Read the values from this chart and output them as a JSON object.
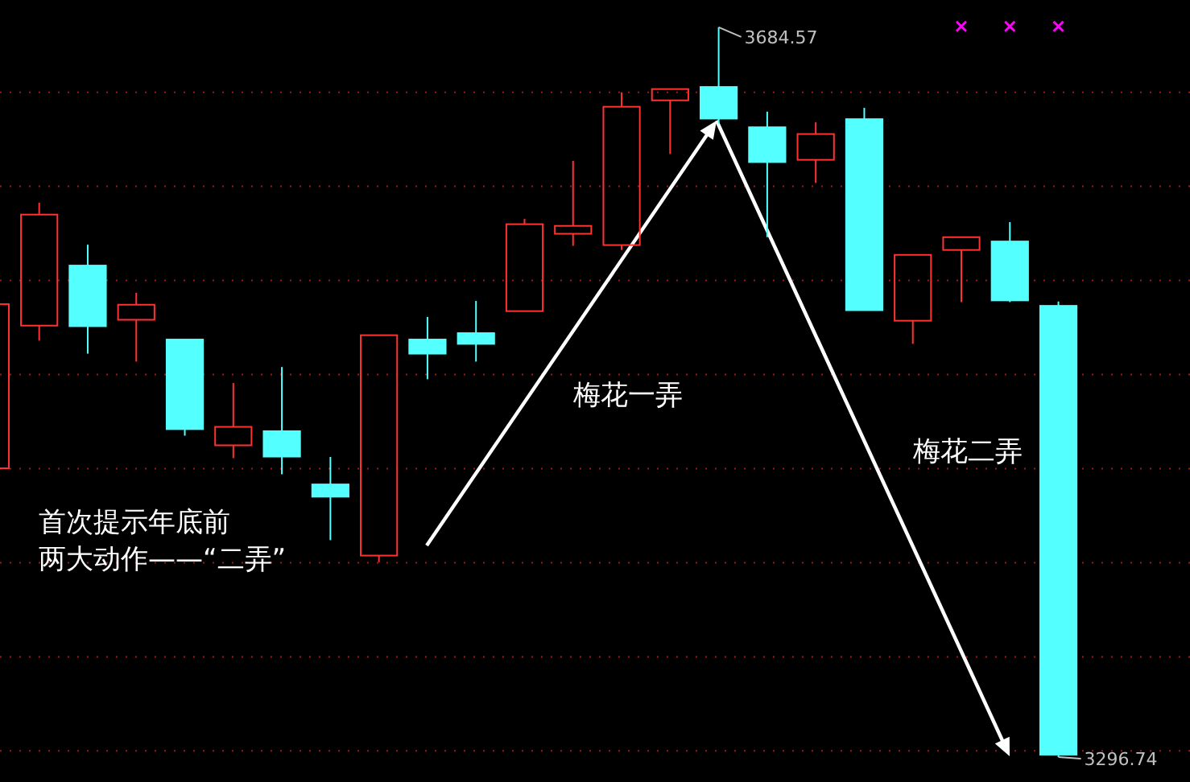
{
  "chart_data": {
    "type": "candlestick",
    "categories": [
      null,
      null,
      null,
      null,
      null,
      null,
      null,
      null,
      null,
      null,
      null,
      null,
      null,
      null,
      null,
      null,
      null,
      null,
      null,
      null,
      null,
      null,
      null
    ],
    "ohlc": [
      [
        3450.2,
        3537.4,
        3450.2,
        3537.4
      ],
      [
        3526.0,
        3591.3,
        3518.0,
        3585.0
      ],
      [
        3557.9,
        3569.0,
        3511.1,
        3525.7
      ],
      [
        3529.1,
        3543.4,
        3506.9,
        3537.1
      ],
      [
        3518.6,
        3518.6,
        3467.5,
        3471.0
      ],
      [
        3462.4,
        3495.5,
        3455.6,
        3472.2
      ],
      [
        3469.9,
        3504.0,
        3447.0,
        3456.4
      ],
      [
        3441.6,
        3456.2,
        3412.0,
        3435.1
      ],
      [
        3403.8,
        3520.9,
        3400.3,
        3520.9
      ],
      [
        3518.6,
        3530.6,
        3497.5,
        3511.1
      ],
      [
        3522.0,
        3539.1,
        3506.9,
        3516.3
      ],
      [
        3533.7,
        3582.7,
        3533.7,
        3579.9
      ],
      [
        3574.8,
        3613.5,
        3568.4,
        3579.0
      ],
      [
        3568.8,
        3650.0,
        3566.2,
        3642.3
      ],
      [
        3645.7,
        3651.7,
        3617.2,
        3651.7
      ],
      [
        3652.8,
        3684.57,
        3633.4,
        3636.0
      ],
      [
        3631.4,
        3639.7,
        3573.0,
        3612.9
      ],
      [
        3614.1,
        3634.0,
        3601.8,
        3627.8
      ],
      [
        3635.7,
        3641.7,
        3534.2,
        3534.2
      ],
      [
        3528.6,
        3563.6,
        3516.3,
        3563.6
      ],
      [
        3566.2,
        3573.0,
        3538.5,
        3573.0
      ],
      [
        3570.7,
        3581.0,
        3538.5,
        3539.4
      ],
      [
        3536.5,
        3538.8,
        3296.74,
        3298.0
      ]
    ],
    "colors": [
      "#ff3232",
      "#ff3232",
      "#54ffff",
      "#ff3232",
      "#54ffff",
      "#ff3232",
      "#54ffff",
      "#54ffff",
      "#ff3232",
      "#54ffff",
      "#54ffff",
      "#ff3232",
      "#ff3232",
      "#ff3232",
      "#ff3232",
      "#54ffff",
      "#54ffff",
      "#ff3232",
      "#54ffff",
      "#ff3232",
      "#ff3232",
      "#54ffff",
      "#54ffff"
    ],
    "series": [
      {
        "type": "scatter",
        "color": "#ff00ff",
        "marker": "cross",
        "values": [
          null,
          null,
          null,
          null,
          null,
          null,
          null,
          null,
          null,
          null,
          null,
          null,
          null,
          null,
          null,
          null,
          null,
          null,
          null,
          null,
          3685,
          3685,
          3685
        ]
      }
    ],
    "yticks": [
      {
        "value": 3300,
        "label": null
      },
      {
        "value": 3350,
        "label": null
      },
      {
        "value": 3400,
        "label": null
      },
      {
        "value": 3450,
        "label": null
      },
      {
        "value": 3500,
        "label": null
      },
      {
        "value": 3550,
        "label": null
      },
      {
        "value": 3600,
        "label": null
      },
      {
        "value": 3650,
        "label": null
      }
    ],
    "grid": "y",
    "annotations": [
      "3684.57",
      "3296.74",
      "首次提示年底前",
      "两大动作——“二弄”",
      "梅花一弄",
      "梅花二弄"
    ]
  }
}
